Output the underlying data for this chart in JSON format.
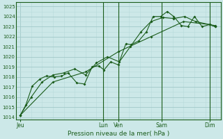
{
  "title": "",
  "xlabel": "Pression niveau de la mer( hPa )",
  "bg_color": "#cce8e8",
  "grid_minor_color": "#b8dada",
  "grid_major_color": "#a0c8c8",
  "line_color": "#1a5c1a",
  "ylim": [
    1013.8,
    1025.4
  ],
  "yticks": [
    1014,
    1015,
    1016,
    1017,
    1018,
    1019,
    1020,
    1021,
    1022,
    1023,
    1024,
    1025
  ],
  "xlim": [
    -0.2,
    9.2
  ],
  "day_positions": [
    0,
    3.8,
    4.5,
    6.5,
    8.7
  ],
  "day_labels": [
    "Jeu",
    "Lun",
    "Ven",
    "Sam",
    "Dim"
  ],
  "vline_positions": [
    3.8,
    4.5,
    6.5,
    8.7
  ],
  "series1_x": [
    0.0,
    0.25,
    0.55,
    0.9,
    1.2,
    1.55,
    1.9,
    2.2,
    2.6,
    2.95,
    3.3,
    3.6,
    3.85,
    4.15,
    4.5,
    4.85,
    5.1,
    5.45,
    5.8,
    6.1,
    6.45,
    6.75,
    7.05,
    7.4,
    7.7,
    8.0,
    8.35,
    8.7,
    8.95
  ],
  "series1_y": [
    1014.2,
    1015.2,
    1017.1,
    1017.8,
    1018.1,
    1018.0,
    1018.1,
    1018.4,
    1017.4,
    1017.3,
    1019.0,
    1019.1,
    1018.7,
    1019.5,
    1019.2,
    1021.3,
    1021.2,
    1021.6,
    1022.5,
    1024.0,
    1024.0,
    1024.5,
    1024.0,
    1023.1,
    1023.0,
    1024.0,
    1023.0,
    1023.2,
    1023.1
  ],
  "series2_x": [
    0.0,
    0.5,
    1.0,
    1.5,
    2.0,
    2.5,
    3.0,
    3.5,
    4.0,
    4.55,
    5.05,
    5.55,
    6.0,
    6.55,
    7.05,
    7.55,
    8.05,
    8.7,
    8.95
  ],
  "series2_y": [
    1014.2,
    1016.0,
    1017.5,
    1018.2,
    1018.4,
    1018.8,
    1018.2,
    1019.4,
    1020.0,
    1019.5,
    1021.0,
    1022.5,
    1023.5,
    1023.9,
    1023.8,
    1024.0,
    1023.5,
    1023.2,
    1023.0
  ],
  "series3_x": [
    0.0,
    1.5,
    3.0,
    4.5,
    6.0,
    7.5,
    8.7,
    8.95
  ],
  "series3_y": [
    1014.2,
    1017.5,
    1018.5,
    1020.5,
    1022.0,
    1023.5,
    1023.2,
    1023.0
  ],
  "markersize": 2.0,
  "linewidth": 0.8
}
